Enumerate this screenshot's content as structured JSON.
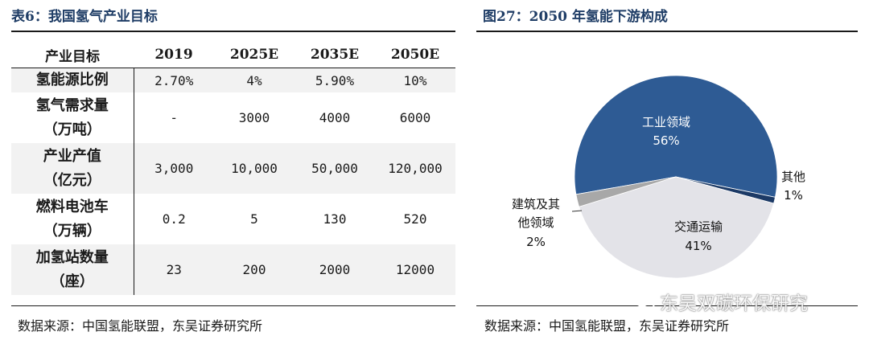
{
  "left": {
    "title": "表6：我国氢气产业目标",
    "columns": [
      "产业目标",
      "2019",
      "2025E",
      "2035E",
      "2050E"
    ],
    "rows": [
      {
        "label": [
          "氢能源比例"
        ],
        "values": [
          "2.70%",
          "4%",
          "5.90%",
          "10%"
        ]
      },
      {
        "label": [
          "氢气需求量",
          "（万吨）"
        ],
        "values": [
          "-",
          "3000",
          "4000",
          "6000"
        ]
      },
      {
        "label": [
          "产业产值",
          "（亿元）"
        ],
        "values": [
          "3,000",
          "10,000",
          "50,000",
          "120,000"
        ]
      },
      {
        "label": [
          "燃料电池车",
          "（万辆）"
        ],
        "values": [
          "0.2",
          "5",
          "130",
          "520"
        ]
      },
      {
        "label": [
          "加氢站数量",
          "（座）"
        ],
        "values": [
          "23",
          "200",
          "2000",
          "12000"
        ]
      }
    ],
    "source": "数据来源：中国氢能联盟，东吴证券研究所"
  },
  "right": {
    "source": "数据来源：中国氢能联盟，东吴证券研究所"
  },
  "chart_data": {
    "type": "pie",
    "title": "图27：2050 年氢能下游构成",
    "slices": [
      {
        "name": "工业领域",
        "value": 56,
        "pct_label": "56%",
        "color": "#2e5b94"
      },
      {
        "name": "其他",
        "value": 1,
        "pct_label": "1%",
        "color": "#1c3a66"
      },
      {
        "name": "交通运输",
        "value": 41,
        "pct_label": "41%",
        "color": "#e3e3e8"
      },
      {
        "name": "建筑及其他领域",
        "value": 2,
        "pct_label": "2%",
        "color": "#a8a8a8"
      }
    ],
    "labels": {
      "industry": [
        "工业领域",
        "56%"
      ],
      "other": [
        "其他",
        "1%"
      ],
      "transport": [
        "交通运输",
        "41%"
      ],
      "building": [
        "建筑及其",
        "他领域",
        "2%"
      ]
    }
  },
  "watermark": {
    "text": "东吴双碳环保研究",
    "icon": "wechat-icon"
  }
}
